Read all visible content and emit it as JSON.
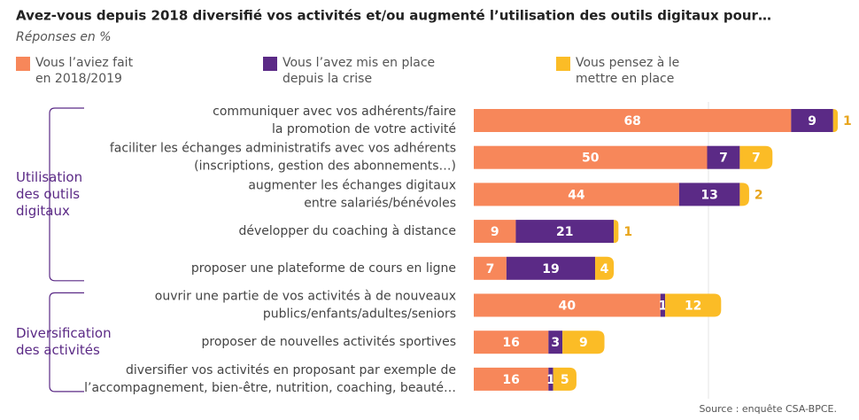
{
  "chart_data": {
    "type": "stacked-barh",
    "title": "Avez-vous depuis 2018 diversifié vos activités et/ou augmenté l’utilisation des outils digitaux pour…",
    "subtitle": "Réponses en %",
    "categories": [
      [
        "communiquer avec vos adhérents/faire",
        "la promotion de votre activité"
      ],
      [
        "faciliter les échanges administratifs avec vos adhérents",
        "(inscriptions, gestion des abonnements…)"
      ],
      [
        "augmenter les échanges digitaux",
        "entre salariés/bénévoles"
      ],
      [
        "développer du coaching à distance"
      ],
      [
        "proposer une plateforme de cours en ligne"
      ],
      [
        "ouvrir une partie de vos activités à de nouveaux",
        "publics/enfants/adultes/seniors"
      ],
      [
        "proposer de nouvelles activités sportives"
      ],
      [
        "diversifier vos activités en proposant par exemple de",
        "l’accompagnement, bien-être, nutrition, coaching, beauté…"
      ]
    ],
    "groups": [
      [
        "Utilisation",
        "des outils",
        "digitaux"
      ],
      [
        "Diversification",
        "des activités"
      ]
    ],
    "series": [
      {
        "name": "Vous l’aviez fait en 2018/2019",
        "color": "#f7875a",
        "values": [
          68,
          50,
          44,
          9,
          7,
          40,
          16,
          16
        ]
      },
      {
        "name": "Vous l’avez mis en place depuis la crise",
        "color": "#5b2a86",
        "values": [
          9,
          7,
          13,
          21,
          19,
          1,
          3,
          1
        ]
      },
      {
        "name": "Vous pensez à le mettre en place",
        "color": "#fbbc26",
        "values": [
          1,
          7,
          2,
          1,
          4,
          12,
          9,
          5
        ]
      }
    ],
    "xlim": [
      0,
      100
    ],
    "source": "Source : enquête CSA-BPCE."
  }
}
